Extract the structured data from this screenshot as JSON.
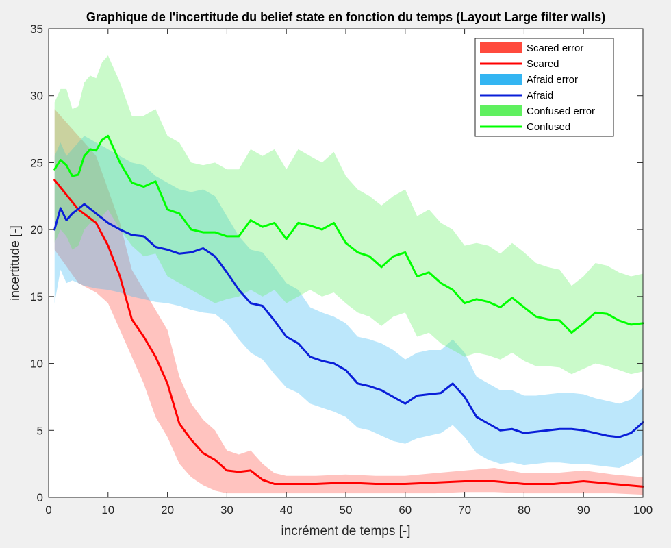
{
  "chart_data": {
    "type": "line",
    "title": "Graphique de l'incertitude du belief state en fonction du temps (Layout Large filter walls)",
    "xlabel": "incrément de temps [-]",
    "ylabel": "incertitude [-]",
    "xlim": [
      0,
      100
    ],
    "ylim": [
      0,
      35
    ],
    "xticks": [
      0,
      10,
      20,
      30,
      40,
      50,
      60,
      70,
      80,
      90,
      100
    ],
    "yticks": [
      0,
      5,
      10,
      15,
      20,
      25,
      30,
      35
    ],
    "grid": false,
    "legend_position": "top-right",
    "legend": [
      "Scared error",
      "Scared",
      "Afraid error",
      "Afraid",
      "Confused error",
      "Confused"
    ],
    "series": [
      {
        "name": "Scared",
        "color": "#ff0000",
        "band_color": "#ff4a3d",
        "band_label": "Scared error",
        "x": [
          1,
          5,
          8,
          10,
          12,
          14,
          16,
          18,
          20,
          22,
          24,
          26,
          28,
          30,
          32,
          34,
          36,
          38,
          40,
          45,
          50,
          55,
          60,
          65,
          70,
          75,
          80,
          85,
          90,
          95,
          100
        ],
        "y": [
          23.7,
          21.5,
          20.5,
          18.8,
          16.5,
          13.3,
          12.0,
          10.5,
          8.5,
          5.5,
          4.3,
          3.3,
          2.8,
          2.0,
          1.9,
          2.0,
          1.3,
          1.0,
          1.0,
          1.0,
          1.1,
          1.0,
          1.0,
          1.1,
          1.2,
          1.2,
          1.0,
          1.0,
          1.2,
          1.0,
          0.8
        ],
        "lower": [
          18.5,
          16.0,
          15.3,
          14.5,
          12.5,
          10.5,
          8.5,
          6.0,
          4.5,
          2.5,
          1.5,
          0.9,
          0.5,
          0.3,
          0.3,
          0.3,
          0.3,
          0.3,
          0.3,
          0.3,
          0.3,
          0.3,
          0.3,
          0.3,
          0.4,
          0.4,
          0.3,
          0.3,
          0.3,
          0.3,
          0.2
        ],
        "upper": [
          29.0,
          27.0,
          25.5,
          23.0,
          20.5,
          17.0,
          15.5,
          14.0,
          12.5,
          9.0,
          7.0,
          5.8,
          5.0,
          3.5,
          3.2,
          3.5,
          2.5,
          1.8,
          1.6,
          1.6,
          1.7,
          1.6,
          1.6,
          1.8,
          2.0,
          2.2,
          1.8,
          1.8,
          2.0,
          1.7,
          1.5
        ]
      },
      {
        "name": "Afraid",
        "color": "#0a1fd8",
        "band_color": "#33b5f2",
        "band_label": "Afraid error",
        "x": [
          1,
          2,
          3,
          4,
          6,
          8,
          10,
          12,
          14,
          16,
          18,
          20,
          22,
          24,
          26,
          28,
          30,
          32,
          34,
          36,
          38,
          40,
          42,
          44,
          46,
          48,
          50,
          52,
          54,
          56,
          58,
          60,
          62,
          64,
          66,
          68,
          70,
          72,
          74,
          76,
          78,
          80,
          82,
          84,
          86,
          88,
          90,
          92,
          94,
          96,
          98,
          100
        ],
        "y": [
          20.0,
          21.6,
          20.7,
          21.2,
          21.9,
          21.2,
          20.5,
          20.0,
          19.6,
          19.5,
          18.7,
          18.5,
          18.2,
          18.3,
          18.6,
          18.0,
          16.8,
          15.5,
          14.5,
          14.3,
          13.2,
          12.0,
          11.5,
          10.5,
          10.2,
          10.0,
          9.5,
          8.5,
          8.3,
          8.0,
          7.5,
          7.0,
          7.6,
          7.7,
          7.8,
          8.5,
          7.5,
          6.0,
          5.5,
          5.0,
          5.1,
          4.8,
          4.9,
          5.0,
          5.1,
          5.1,
          5.0,
          4.8,
          4.6,
          4.5,
          4.8,
          5.6
        ],
        "lower": [
          14.5,
          17.0,
          16.0,
          16.2,
          15.8,
          15.6,
          15.5,
          15.3,
          15.0,
          14.8,
          14.6,
          14.5,
          14.3,
          14.0,
          13.8,
          13.7,
          13.0,
          11.8,
          10.8,
          10.3,
          9.2,
          8.2,
          7.8,
          7.0,
          6.7,
          6.4,
          6.0,
          5.2,
          5.0,
          4.6,
          4.2,
          4.0,
          4.4,
          4.6,
          4.8,
          5.4,
          4.5,
          3.3,
          2.8,
          2.5,
          2.6,
          2.4,
          2.5,
          2.6,
          2.6,
          2.5,
          2.5,
          2.4,
          2.3,
          2.2,
          2.6,
          3.2
        ],
        "upper": [
          25.5,
          26.5,
          25.5,
          26.0,
          27.0,
          26.5,
          26.0,
          25.5,
          25.0,
          24.8,
          24.0,
          23.5,
          23.0,
          22.8,
          23.0,
          22.5,
          21.0,
          19.5,
          18.5,
          18.3,
          17.2,
          16.0,
          15.5,
          14.2,
          13.8,
          13.5,
          13.0,
          12.0,
          11.8,
          11.5,
          11.0,
          10.3,
          10.8,
          11.0,
          11.0,
          11.8,
          10.8,
          9.0,
          8.5,
          8.0,
          8.0,
          7.6,
          7.6,
          7.7,
          7.8,
          7.8,
          7.7,
          7.4,
          7.2,
          7.0,
          7.3,
          8.2
        ]
      },
      {
        "name": "Confused",
        "color": "#00ff00",
        "band_color": "#5ff05f",
        "band_label": "Confused error",
        "x": [
          1,
          2,
          3,
          4,
          5,
          6,
          7,
          8,
          9,
          10,
          12,
          14,
          16,
          18,
          20,
          22,
          24,
          26,
          28,
          30,
          32,
          34,
          36,
          38,
          40,
          42,
          44,
          46,
          48,
          50,
          52,
          54,
          56,
          58,
          60,
          62,
          64,
          66,
          68,
          70,
          72,
          74,
          76,
          78,
          80,
          82,
          84,
          86,
          88,
          90,
          92,
          94,
          96,
          98,
          100
        ],
        "y": [
          24.5,
          25.2,
          24.8,
          24.0,
          24.1,
          25.5,
          26.0,
          25.9,
          26.7,
          27.0,
          25.0,
          23.5,
          23.2,
          23.6,
          21.5,
          21.2,
          20.0,
          19.8,
          19.8,
          19.5,
          19.5,
          20.7,
          20.2,
          20.5,
          19.3,
          20.5,
          20.3,
          20.0,
          20.5,
          19.0,
          18.3,
          18.0,
          17.2,
          18.0,
          18.3,
          16.5,
          16.8,
          16.0,
          15.5,
          14.5,
          14.8,
          14.6,
          14.2,
          14.9,
          14.2,
          13.5,
          13.3,
          13.2,
          12.3,
          13.0,
          13.8,
          13.7,
          13.2,
          12.9,
          13.0
        ],
        "lower": [
          19.0,
          20.0,
          19.5,
          18.5,
          18.8,
          20.0,
          20.5,
          20.5,
          21.0,
          21.5,
          20.0,
          18.8,
          18.0,
          18.2,
          16.5,
          16.0,
          15.5,
          15.0,
          14.5,
          14.8,
          15.0,
          15.5,
          15.0,
          15.5,
          14.5,
          15.0,
          15.5,
          15.0,
          15.3,
          14.5,
          13.8,
          13.5,
          12.8,
          13.5,
          13.8,
          12.0,
          12.3,
          11.5,
          11.0,
          10.5,
          10.8,
          10.6,
          10.3,
          10.8,
          10.2,
          9.8,
          9.8,
          9.7,
          9.2,
          9.6,
          10.0,
          9.8,
          9.5,
          9.2,
          9.4
        ],
        "upper": [
          29.5,
          30.5,
          30.5,
          29.0,
          29.2,
          31.0,
          31.5,
          31.3,
          32.5,
          33.0,
          31.0,
          28.5,
          28.5,
          29.0,
          27.0,
          26.5,
          25.0,
          24.8,
          25.0,
          24.5,
          24.5,
          26.0,
          25.5,
          26.0,
          24.5,
          26.0,
          25.5,
          25.0,
          25.8,
          24.0,
          23.0,
          22.5,
          21.8,
          22.5,
          23.0,
          21.0,
          21.5,
          20.5,
          20.0,
          18.8,
          19.0,
          18.8,
          18.2,
          19.0,
          18.3,
          17.5,
          17.2,
          17.0,
          15.8,
          16.5,
          17.5,
          17.3,
          16.8,
          16.5,
          16.7
        ]
      }
    ]
  }
}
